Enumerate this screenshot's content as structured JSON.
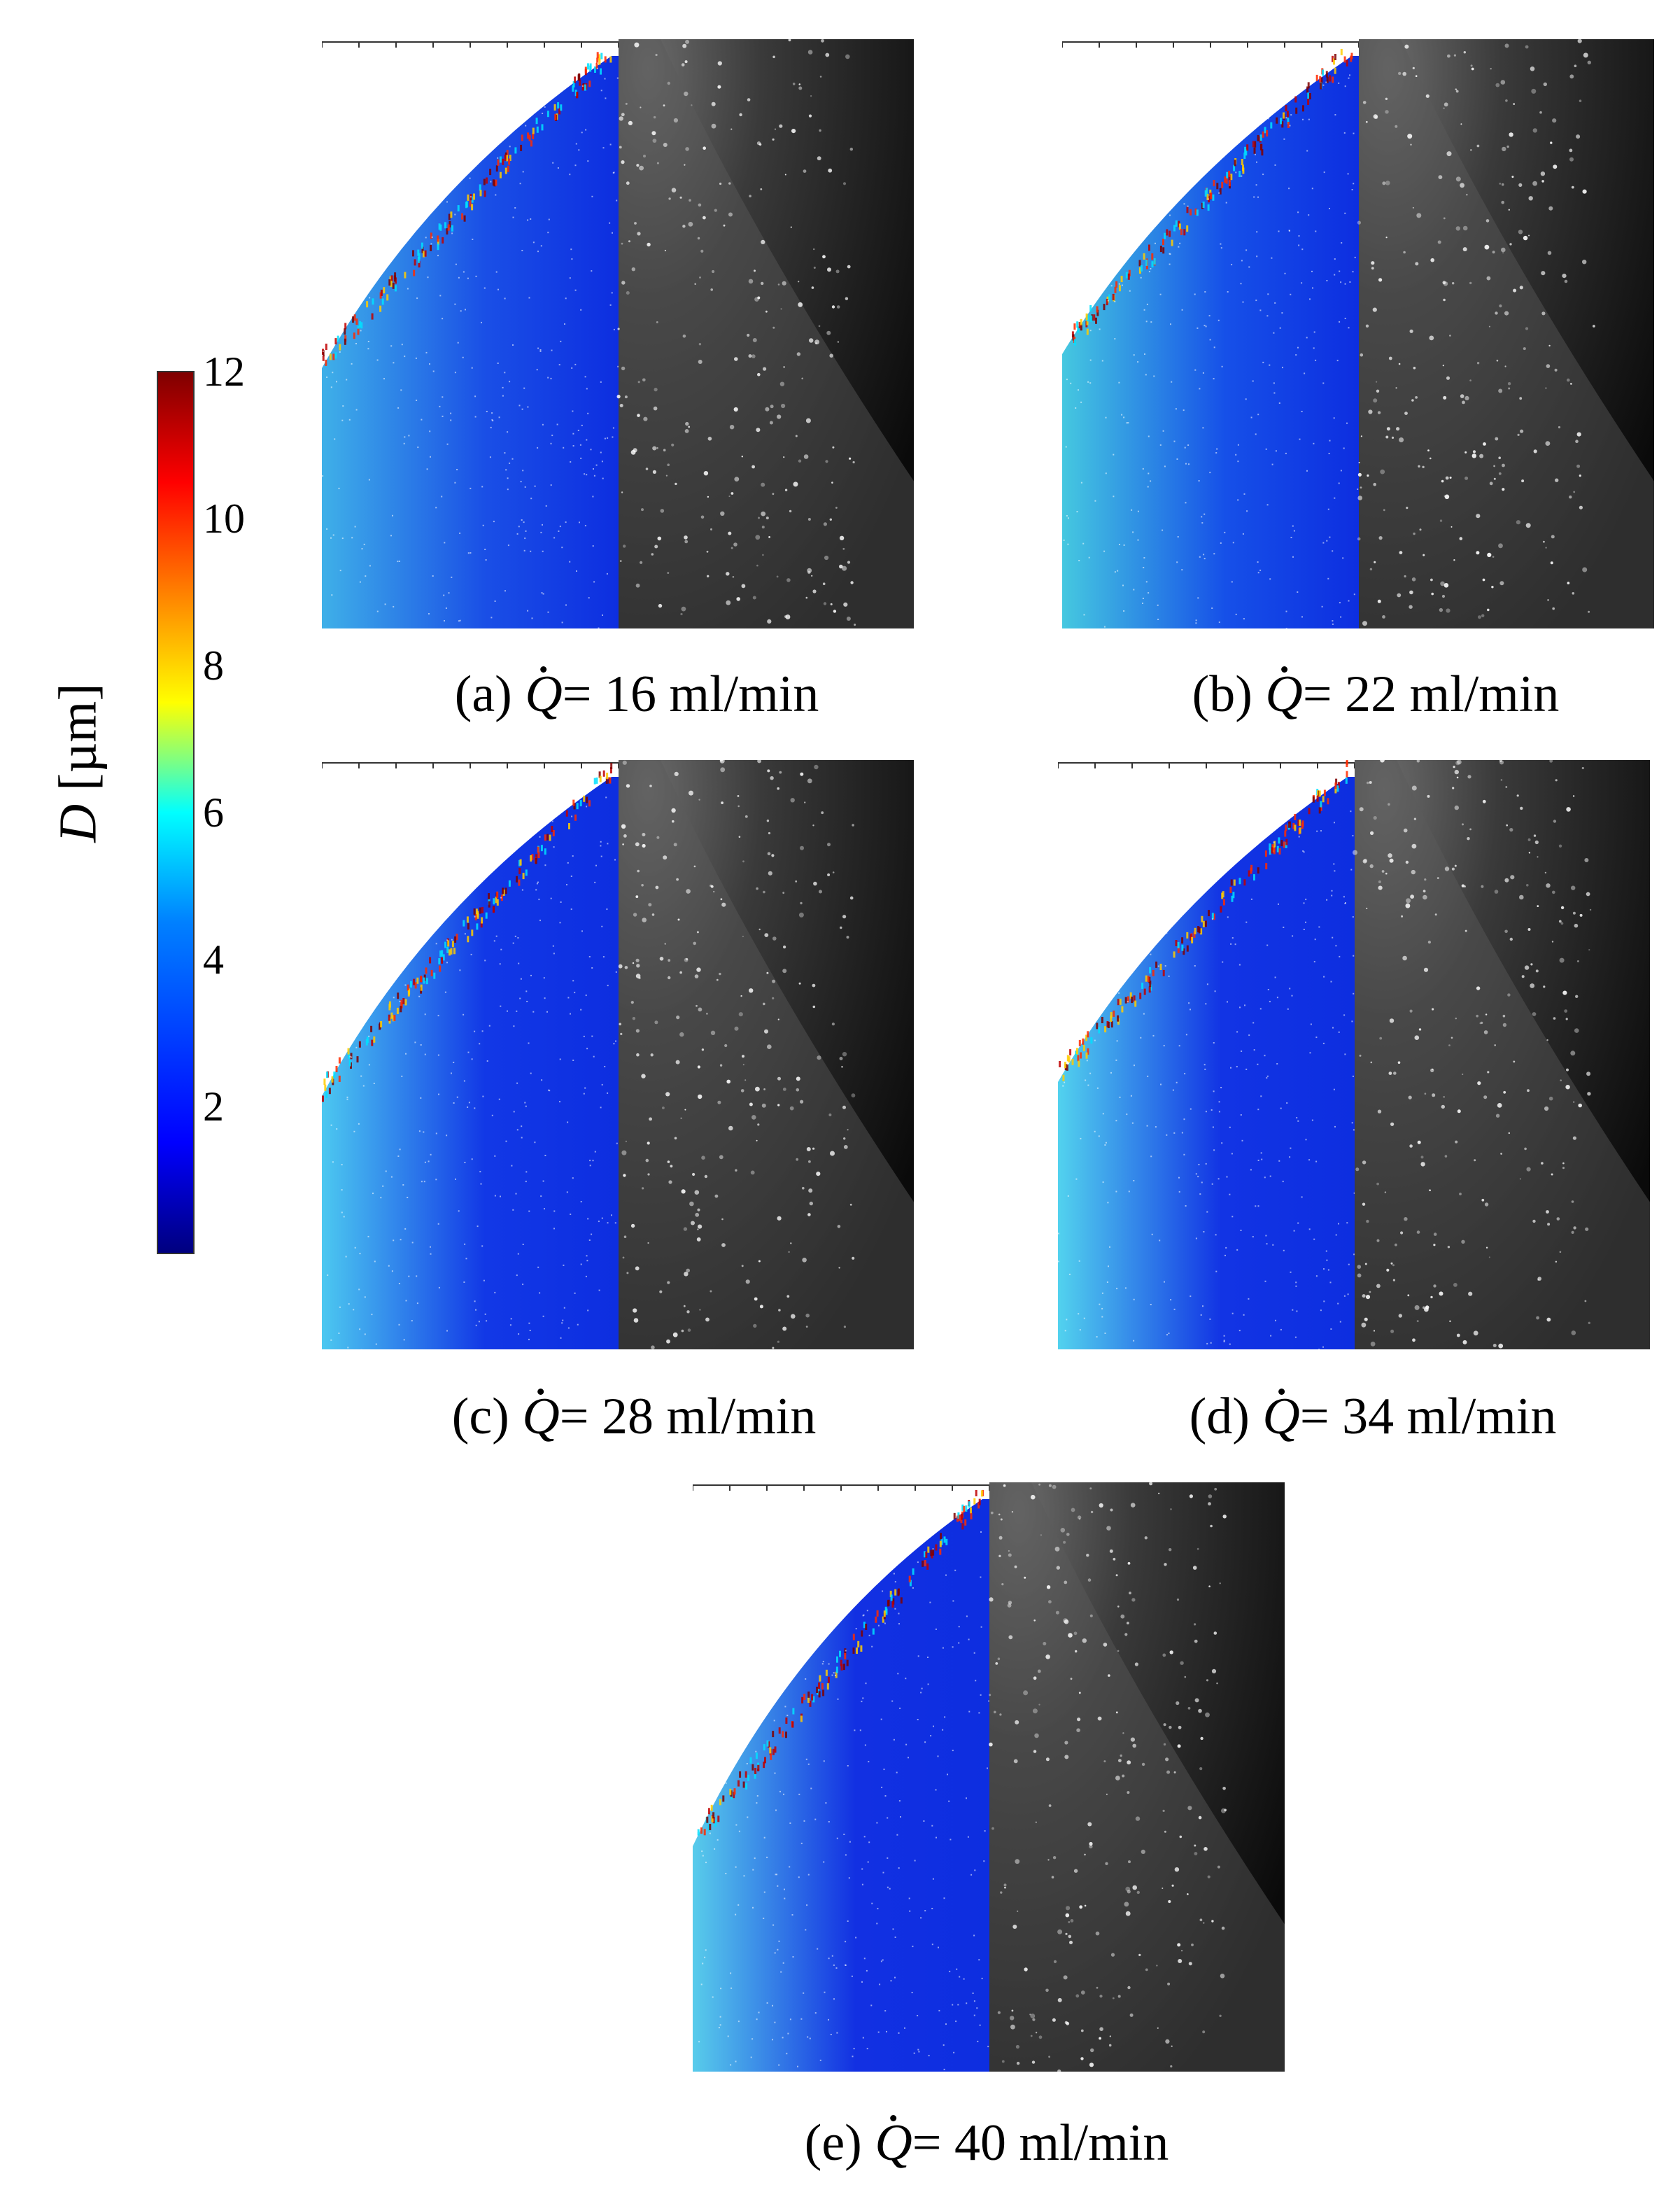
{
  "colorbar": {
    "ticks": [
      "2",
      "4",
      "6",
      "8",
      "10",
      "12"
    ],
    "label_symbol": "D",
    "label_unit": "[µm]"
  },
  "panels": [
    {
      "id": "a",
      "prefix": "(a)",
      "symbol": "Q",
      "value": "= 16 ml/min"
    },
    {
      "id": "b",
      "prefix": "(b)",
      "symbol": "Q",
      "value": "= 22 ml/min"
    },
    {
      "id": "c",
      "prefix": "(c)",
      "symbol": "Q",
      "value": "= 28 ml/min"
    },
    {
      "id": "d",
      "prefix": "(d)",
      "symbol": "Q",
      "value": "= 34 ml/min"
    },
    {
      "id": "e",
      "prefix": "(e)",
      "symbol": "Q",
      "value": "= 40 ml/min"
    }
  ]
}
